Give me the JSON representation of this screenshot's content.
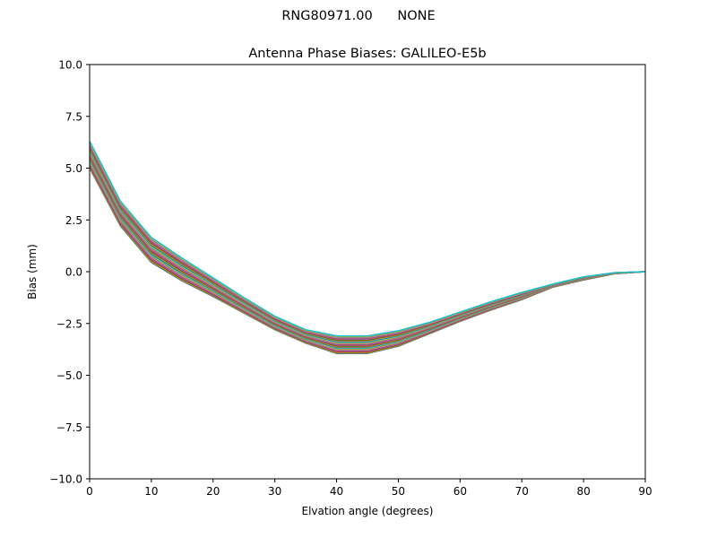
{
  "figure": {
    "suptitle": "RNG80971.00      NONE"
  },
  "chart_data": {
    "type": "line",
    "title": "Antenna Phase Biases: GALILEO-E5b",
    "suptitle": "RNG80971.00      NONE",
    "xlabel": "Elvation angle (degrees)",
    "ylabel": "Bias (mm)",
    "xlim": [
      0,
      90
    ],
    "ylim": [
      -10.0,
      10.0
    ],
    "grid": false,
    "legend": null,
    "xticks": [
      0,
      10,
      20,
      30,
      40,
      50,
      60,
      70,
      80,
      90
    ],
    "xtick_labels": [
      "0",
      "10",
      "20",
      "30",
      "40",
      "50",
      "60",
      "70",
      "80",
      "90"
    ],
    "yticks": [
      10.0,
      7.5,
      5.0,
      2.5,
      0.0,
      -2.5,
      -5.0,
      -7.5,
      -10.0
    ],
    "ytick_labels": [
      "10.0",
      "7.5",
      "5.0",
      "2.5",
      "0.0",
      "−2.5",
      "−5.0",
      "−7.5",
      "−10.0"
    ],
    "x": [
      0,
      5,
      10,
      15,
      20,
      25,
      30,
      35,
      40,
      45,
      50,
      55,
      60,
      65,
      70,
      75,
      80,
      85,
      90
    ],
    "band_upper": [
      6.3,
      3.4,
      1.65,
      0.65,
      -0.3,
      -1.25,
      -2.15,
      -2.8,
      -3.1,
      -3.1,
      -2.85,
      -2.45,
      -1.95,
      -1.45,
      -1.0,
      -0.6,
      -0.25,
      -0.05,
      0.0
    ],
    "band_lower": [
      5.0,
      2.2,
      0.45,
      -0.45,
      -1.2,
      -2.0,
      -2.8,
      -3.45,
      -3.95,
      -3.95,
      -3.6,
      -3.0,
      -2.4,
      -1.85,
      -1.35,
      -0.75,
      -0.4,
      -0.1,
      0.0
    ],
    "series_count": 30,
    "series_note": "Many overlapping curves (one per satellite/PRN) forming a dense band between band_upper and band_lower; all converge to 0.0 at 90 degrees",
    "palette": [
      "#1f77b4",
      "#ff7f0e",
      "#2ca02c",
      "#d62728",
      "#9467bd",
      "#8c564b",
      "#e377c2",
      "#7f7f7f",
      "#bcbd22",
      "#17becf"
    ]
  }
}
